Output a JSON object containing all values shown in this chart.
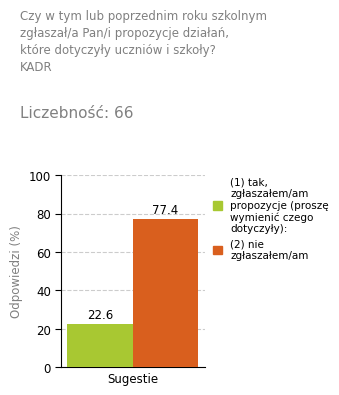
{
  "title_lines": [
    "Czy w tym lub poprzednim roku szkolnym",
    "zgłaszał/a Pan/i propozycje działań,",
    "które dotyczyły uczniów i szkoły?",
    "KADR"
  ],
  "count_label": "Liczebność: 66",
  "categories": [
    "Sugestie"
  ],
  "series": [
    {
      "label": "(1) tak,\nzgłaszałem/am\npropozycje (proszę\nwymienić czego\ndotyczyły):",
      "values": [
        22.6
      ],
      "color": "#a8c832"
    },
    {
      "label": "(2) nie\nzgłaszałem/am",
      "values": [
        77.4
      ],
      "color": "#d95f1e"
    }
  ],
  "ylabel": "Odpowiedzi (%)",
  "ylim": [
    0,
    100
  ],
  "yticks": [
    0,
    20,
    40,
    60,
    80,
    100
  ],
  "bar_width": 0.38,
  "background_color": "#ffffff",
  "grid_color": "#cccccc",
  "tick_color": "#cc0000",
  "title_color": "#808080",
  "axis_label_color": "#808080",
  "value_label_fontsize": 8.5,
  "title_fontsize": 8.5,
  "count_fontsize": 11,
  "legend_fontsize": 7.5,
  "ylabel_fontsize": 8.5
}
